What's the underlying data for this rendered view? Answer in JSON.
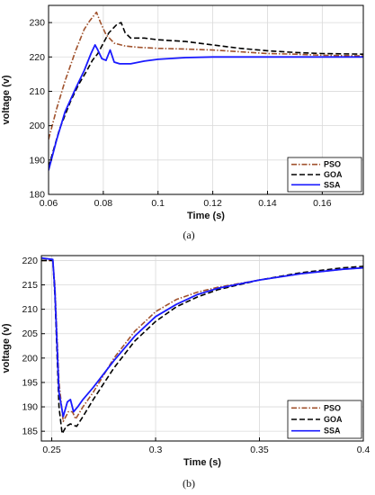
{
  "chart_data": [
    {
      "type": "line",
      "caption": "(a)",
      "xlabel": "Time (s)",
      "ylabel": "voltage (v)",
      "xlim": [
        0.06,
        0.175
      ],
      "ylim": [
        180,
        235
      ],
      "xticks": [
        "0.06",
        "0.08",
        "0.1",
        "0.12",
        "0.14",
        "0.16"
      ],
      "xtick_values": [
        0.06,
        0.08,
        0.1,
        0.12,
        0.14,
        0.16
      ],
      "yticks": [
        "180",
        "190",
        "200",
        "210",
        "220",
        "230"
      ],
      "ytick_values": [
        180,
        190,
        200,
        210,
        220,
        230
      ],
      "grid": true,
      "legend_position": "bottom-right",
      "series": [
        {
          "name": "PSO",
          "color": "#a0522d",
          "dash": "dashdot",
          "x": [
            0.06,
            0.063,
            0.066,
            0.07,
            0.073,
            0.075,
            0.0765,
            0.0775,
            0.079,
            0.081,
            0.084,
            0.088,
            0.093,
            0.1,
            0.11,
            0.12,
            0.13,
            0.14,
            0.15,
            0.16,
            0.175
          ],
          "y": [
            196,
            205,
            213,
            222,
            228,
            230.5,
            232,
            233,
            230,
            226.5,
            224,
            223.2,
            222.8,
            222.5,
            222.3,
            222,
            221.5,
            221,
            220.8,
            220.5,
            220.3
          ]
        },
        {
          "name": "GOA",
          "color": "#000000",
          "dash": "dashed",
          "x": [
            0.06,
            0.064,
            0.068,
            0.071,
            0.074,
            0.076,
            0.078,
            0.08,
            0.082,
            0.085,
            0.0865,
            0.088,
            0.09,
            0.095,
            0.1,
            0.11,
            0.12,
            0.13,
            0.14,
            0.15,
            0.16,
            0.175
          ],
          "y": [
            188,
            199,
            207,
            212,
            216,
            219,
            221,
            224,
            227,
            229.5,
            230,
            227,
            225.5,
            225.5,
            225,
            224.5,
            223.5,
            222.5,
            221.8,
            221.3,
            221,
            220.8
          ]
        },
        {
          "name": "SSA",
          "color": "#1a1aff",
          "dash": "solid",
          "x": [
            0.06,
            0.063,
            0.066,
            0.07,
            0.073,
            0.0755,
            0.077,
            0.078,
            0.0795,
            0.081,
            0.0825,
            0.084,
            0.086,
            0.09,
            0.095,
            0.1,
            0.11,
            0.12,
            0.14,
            0.16,
            0.175
          ],
          "y": [
            187,
            196,
            204,
            211,
            216,
            221,
            223.5,
            222,
            219.5,
            219,
            222,
            218.5,
            218,
            218,
            218.8,
            219.3,
            219.8,
            220,
            220,
            220,
            220
          ]
        }
      ]
    },
    {
      "type": "line",
      "caption": "(b)",
      "xlabel": "Time (s)",
      "ylabel": "voltage (v)",
      "xlim": [
        0.245,
        0.4
      ],
      "ylim": [
        183,
        221
      ],
      "xticks": [
        "0.25",
        "0.3",
        "0.35",
        "0.4"
      ],
      "xtick_values": [
        0.25,
        0.3,
        0.35,
        0.4
      ],
      "yticks": [
        "185",
        "190",
        "195",
        "200",
        "205",
        "210",
        "215",
        "220"
      ],
      "ytick_values": [
        185,
        190,
        195,
        200,
        205,
        210,
        215,
        220
      ],
      "grid": true,
      "legend_position": "bottom-right",
      "series": [
        {
          "name": "PSO",
          "color": "#a0522d",
          "dash": "dashdot",
          "x": [
            0.245,
            0.2505,
            0.2515,
            0.2535,
            0.2555,
            0.258,
            0.26,
            0.2615,
            0.265,
            0.27,
            0.28,
            0.29,
            0.3,
            0.31,
            0.32,
            0.33,
            0.35,
            0.37,
            0.39,
            0.4
          ],
          "y": [
            220,
            220,
            215,
            195,
            187,
            189,
            189,
            187.5,
            190,
            193,
            200,
            205.5,
            209.5,
            212,
            213.5,
            214.5,
            216,
            217.3,
            218.2,
            218.5
          ]
        },
        {
          "name": "GOA",
          "color": "#000000",
          "dash": "dashed",
          "x": [
            0.245,
            0.2505,
            0.2515,
            0.2535,
            0.255,
            0.257,
            0.259,
            0.262,
            0.265,
            0.27,
            0.28,
            0.29,
            0.3,
            0.31,
            0.32,
            0.33,
            0.35,
            0.37,
            0.39,
            0.4
          ],
          "y": [
            220,
            220,
            213,
            190,
            184.5,
            186,
            186.5,
            186,
            188,
            191.5,
            198,
            203.5,
            207.5,
            210.5,
            212.5,
            214,
            216,
            217.5,
            218.5,
            218.8
          ]
        },
        {
          "name": "SSA",
          "color": "#1a1aff",
          "dash": "solid",
          "x": [
            0.245,
            0.2505,
            0.2515,
            0.2535,
            0.2555,
            0.2575,
            0.259,
            0.2605,
            0.2625,
            0.265,
            0.27,
            0.28,
            0.29,
            0.3,
            0.31,
            0.32,
            0.33,
            0.35,
            0.37,
            0.39,
            0.4
          ],
          "y": [
            220.5,
            220.2,
            214,
            193,
            188,
            191,
            191.5,
            189,
            190,
            191.5,
            194,
            199.5,
            204.5,
            208.5,
            211,
            213,
            214.3,
            216,
            217.3,
            218.2,
            218.5
          ]
        }
      ]
    }
  ]
}
